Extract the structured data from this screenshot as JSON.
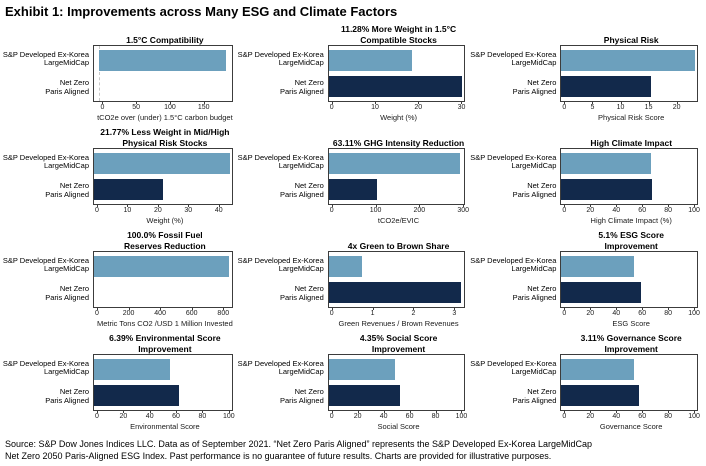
{
  "page": {
    "title": "Exhibit 1: Improvements across Many ESG and Climate Factors",
    "footer_line1": "Source: S&P Dow Jones Indices LLC. Data as of September 2021. “Net Zero Paris Aligned” represents the S&P Developed Ex-Korea LargeMidCap",
    "footer_line2": "Net Zero 2050 Paris-Aligned ESG Index. Past performance is no guarantee of future results. Charts are provided for illustrative purposes."
  },
  "colors": {
    "benchmark_bar": "#6CA0BD",
    "netzero_bar": "#12294B",
    "axis": "#3c3c3c"
  },
  "categories": [
    [
      "S&P Developed Ex-Korea",
      "LargeMidCap"
    ],
    [
      "Net Zero",
      "Paris Aligned"
    ]
  ],
  "series_names": [
    "S&P Developed Ex-Korea LargeMidCap",
    "Net Zero Paris Aligned"
  ],
  "chart_data": [
    {
      "type": "bar",
      "orientation": "horizontal",
      "title": "1.5°C Compatibility",
      "title_lines": [
        "1.5°C Compatibility"
      ],
      "xlabel": "tCO2e over (under) 1.5°C carbon budget",
      "xlim": [
        -8,
        193
      ],
      "xticks": [
        0,
        50,
        100,
        150
      ],
      "grid": false,
      "zero_line_dashed": true,
      "series": [
        {
          "name": "S&P Developed Ex-Korea LargeMidCap",
          "value": 185
        },
        {
          "name": "Net Zero Paris Aligned",
          "value": 0
        }
      ]
    },
    {
      "type": "bar",
      "orientation": "horizontal",
      "title": "11.28% More Weight in 1.5°C Compatible Stocks",
      "title_lines": [
        "11.28% More Weight in 1.5°C",
        "Compatible Stocks"
      ],
      "xlabel": "Weight (%)",
      "xlim": [
        0,
        30.9
      ],
      "xticks": [
        0,
        10,
        20,
        30
      ],
      "grid": false,
      "zero_line_dashed": false,
      "series": [
        {
          "name": "S&P Developed Ex-Korea LargeMidCap",
          "value": 19
        },
        {
          "name": "Net Zero Paris Aligned",
          "value": 30.3
        }
      ]
    },
    {
      "type": "bar",
      "orientation": "horizontal",
      "title": "Physical Risk",
      "title_lines": [
        "Physical Risk"
      ],
      "xlabel": "Physical Risk Score",
      "xlim": [
        0,
        23.8
      ],
      "xticks": [
        0,
        5,
        10,
        15,
        20
      ],
      "grid": false,
      "zero_line_dashed": false,
      "series": [
        {
          "name": "S&P Developed Ex-Korea LargeMidCap",
          "value": 23.4
        },
        {
          "name": "Net Zero Paris Aligned",
          "value": 15.7
        }
      ]
    },
    {
      "type": "bar",
      "orientation": "horizontal",
      "title": "21.77% Less Weight in Mid/High Physical Risk Stocks",
      "title_lines": [
        "21.77% Less Weight in Mid/High",
        "Physical Risk Stocks"
      ],
      "xlabel": "Weight (%)",
      "xlim": [
        0,
        44.6
      ],
      "xticks": [
        0,
        10,
        20,
        30,
        40
      ],
      "grid": false,
      "zero_line_dashed": false,
      "series": [
        {
          "name": "S&P Developed Ex-Korea LargeMidCap",
          "value": 44
        },
        {
          "name": "Net Zero Paris Aligned",
          "value": 22.2
        }
      ]
    },
    {
      "type": "bar",
      "orientation": "horizontal",
      "title": "63.11% GHG Intensity Reduction",
      "title_lines": [
        "63.11% GHG Intensity Reduction"
      ],
      "xlabel": "tCO2e/EVIC",
      "xlim": [
        0,
        305
      ],
      "xticks": [
        0,
        100,
        200,
        300
      ],
      "grid": false,
      "zero_line_dashed": false,
      "series": [
        {
          "name": "S&P Developed Ex-Korea LargeMidCap",
          "value": 295
        },
        {
          "name": "Net Zero Paris Aligned",
          "value": 109
        }
      ]
    },
    {
      "type": "bar",
      "orientation": "horizontal",
      "title": "High Climate Impact",
      "title_lines": [
        "High Climate Impact"
      ],
      "xlabel": "High Climate Impact (%)",
      "xlim": [
        0,
        103
      ],
      "xticks": [
        0,
        20,
        40,
        60,
        80,
        100
      ],
      "grid": false,
      "zero_line_dashed": false,
      "series": [
        {
          "name": "S&P Developed Ex-Korea LargeMidCap",
          "value": 68
        },
        {
          "name": "Net Zero Paris Aligned",
          "value": 68.7
        }
      ]
    },
    {
      "type": "bar",
      "orientation": "horizontal",
      "title": "100.0% Fossil Fuel Reserves Reduction",
      "title_lines": [
        "100.0% Fossil Fuel",
        "Reserves Reduction"
      ],
      "xlabel": "Metric Tons CO2 /USD 1 Million Invested",
      "xlim": [
        0,
        860
      ],
      "xticks": [
        0,
        200,
        400,
        600,
        800
      ],
      "grid": false,
      "zero_line_dashed": false,
      "series": [
        {
          "name": "S&P Developed Ex-Korea LargeMidCap",
          "value": 845
        },
        {
          "name": "Net Zero Paris Aligned",
          "value": 0
        }
      ]
    },
    {
      "type": "bar",
      "orientation": "horizontal",
      "title": "4x Green to Brown Share",
      "title_lines": [
        "4x Green to Brown Share"
      ],
      "xlabel": "Green Revenues / Brown Revenues",
      "xlim": [
        0,
        3.27
      ],
      "xticks": [
        0,
        1,
        2,
        3
      ],
      "grid": false,
      "zero_line_dashed": false,
      "series": [
        {
          "name": "S&P Developed Ex-Korea LargeMidCap",
          "value": 0.8
        },
        {
          "name": "Net Zero Paris Aligned",
          "value": 3.2
        }
      ]
    },
    {
      "type": "bar",
      "orientation": "horizontal",
      "title": "5.1% ESG Score Improvement",
      "title_lines": [
        "5.1% ESG Score",
        "Improvement"
      ],
      "xlabel": "ESG Score",
      "xlim": [
        0,
        103
      ],
      "xticks": [
        0,
        20,
        40,
        60,
        80,
        100
      ],
      "grid": false,
      "zero_line_dashed": false,
      "series": [
        {
          "name": "S&P Developed Ex-Korea LargeMidCap",
          "value": 55
        },
        {
          "name": "Net Zero Paris Aligned",
          "value": 60.5
        }
      ]
    },
    {
      "type": "bar",
      "orientation": "horizontal",
      "title": "6.39% Environmental Score Improvement",
      "title_lines": [
        "6.39% Environmental Score",
        "Improvement"
      ],
      "xlabel": "Environmental Score",
      "xlim": [
        0,
        103
      ],
      "xticks": [
        0,
        20,
        40,
        60,
        80,
        100
      ],
      "grid": false,
      "zero_line_dashed": false,
      "series": [
        {
          "name": "S&P Developed Ex-Korea LargeMidCap",
          "value": 57
        },
        {
          "name": "Net Zero Paris Aligned",
          "value": 63.4
        }
      ]
    },
    {
      "type": "bar",
      "orientation": "horizontal",
      "title": "4.35% Social Score Improvement",
      "title_lines": [
        "4.35% Social Score",
        "Improvement"
      ],
      "xlabel": "Social Score",
      "xlim": [
        0,
        103
      ],
      "xticks": [
        0,
        20,
        40,
        60,
        80,
        100
      ],
      "grid": false,
      "zero_line_dashed": false,
      "series": [
        {
          "name": "S&P Developed Ex-Korea LargeMidCap",
          "value": 50
        },
        {
          "name": "Net Zero Paris Aligned",
          "value": 54.4
        }
      ]
    },
    {
      "type": "bar",
      "orientation": "horizontal",
      "title": "3.11% Governance Score Improvement",
      "title_lines": [
        "3.11% Governance Score",
        "Improvement"
      ],
      "xlabel": "Governance Score",
      "xlim": [
        0,
        103
      ],
      "xticks": [
        0,
        20,
        40,
        60,
        80,
        100
      ],
      "grid": false,
      "zero_line_dashed": false,
      "series": [
        {
          "name": "S&P Developed Ex-Korea LargeMidCap",
          "value": 55.5
        },
        {
          "name": "Net Zero Paris Aligned",
          "value": 58.6
        }
      ]
    }
  ]
}
